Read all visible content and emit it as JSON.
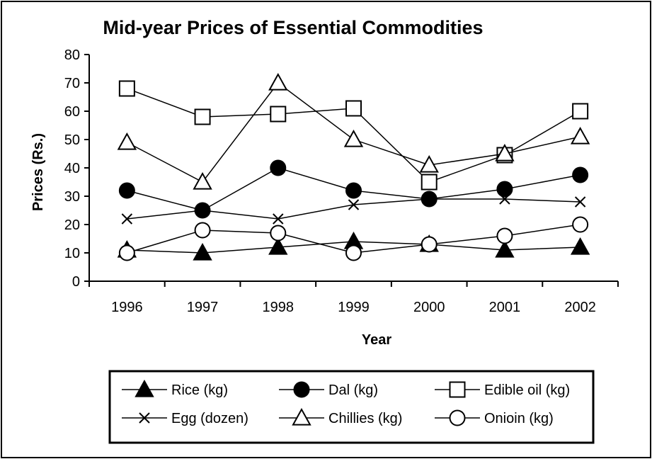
{
  "chart_data": {
    "type": "line",
    "title": "Mid-year Prices of Essential Commodities",
    "xlabel": "Year",
    "ylabel": "Prices (Rs.)",
    "ylim": [
      0,
      80
    ],
    "yticks": [
      "0",
      "10",
      "20",
      "30",
      "40",
      "50",
      "60",
      "70",
      "80"
    ],
    "categories": [
      "1996",
      "1997",
      "1998",
      "1999",
      "2000",
      "2001",
      "2002"
    ],
    "grid": false,
    "legend_position": "bottom",
    "series": [
      {
        "name": "Rice (kg)",
        "marker": "filled-triangle",
        "values": [
          11,
          10,
          12,
          14,
          13,
          11,
          12
        ]
      },
      {
        "name": "Dal (kg)",
        "marker": "filled-circle",
        "values": [
          32,
          25,
          40,
          32,
          29,
          32.5,
          37.5
        ]
      },
      {
        "name": "Edible oil (kg)",
        "marker": "open-square",
        "values": [
          68,
          58,
          59,
          61,
          35,
          44.5,
          60
        ]
      },
      {
        "name": "Egg (dozen)",
        "marker": "x",
        "values": [
          22,
          25,
          22,
          27,
          29,
          29,
          28
        ]
      },
      {
        "name": "Chillies (kg)",
        "marker": "open-triangle",
        "values": [
          49,
          35,
          70,
          50,
          41,
          45,
          51
        ]
      },
      {
        "name": "Onioin (kg)",
        "marker": "open-circle",
        "values": [
          10,
          18,
          17,
          10,
          13,
          16,
          20
        ]
      }
    ]
  }
}
